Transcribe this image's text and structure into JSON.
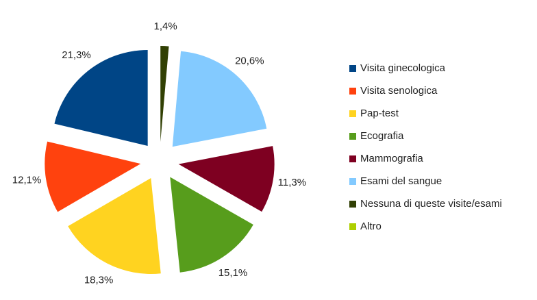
{
  "chart_data": {
    "type": "pie",
    "categories": [
      "Visita ginecologica",
      "Visita senologica",
      "Pap-test",
      "Ecografia",
      "Mammografia",
      "Esami del sangue",
      "Nessuna di queste visite/esami",
      "Altro"
    ],
    "values": [
      21.3,
      12.1,
      18.3,
      15.1,
      11.3,
      20.6,
      1.4,
      0
    ],
    "value_labels": [
      "21,3%",
      "12,1%",
      "18,3%",
      "15,1%",
      "11,3%",
      "20,6%",
      "1,4%",
      null
    ],
    "colors": [
      "#004586",
      "#ff420e",
      "#ffd320",
      "#579d1c",
      "#7e0021",
      "#83caff",
      "#314004",
      "#aecf00"
    ],
    "legend": "right"
  }
}
